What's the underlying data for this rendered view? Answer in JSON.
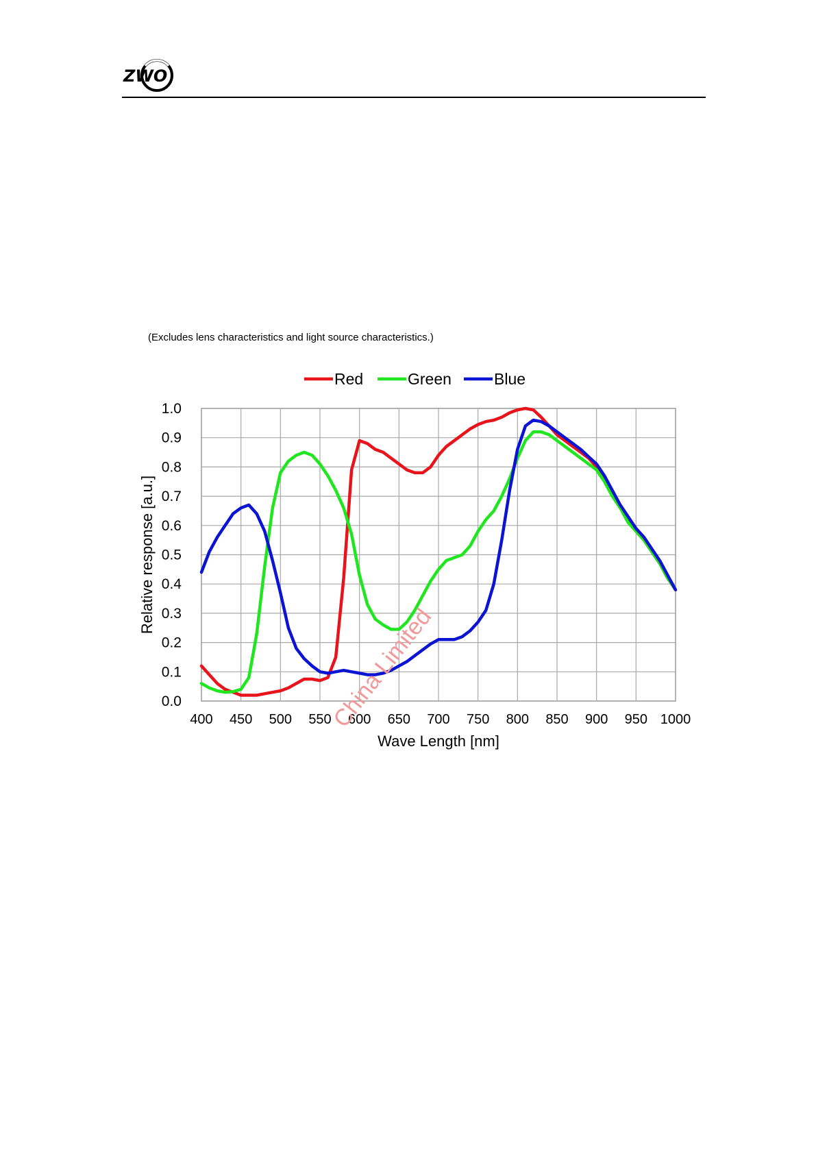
{
  "header": {
    "logo_text": "ZWO"
  },
  "note": "(Excludes lens characteristics and light source characteristics.)",
  "watermark": "China Limited",
  "colors": {
    "red": "#e8141c",
    "green": "#20e620",
    "blue": "#0a14d2",
    "grid": "#a8a8a8"
  },
  "chart_data": {
    "type": "line",
    "title": "",
    "xlabel": "Wave Length [nm]",
    "ylabel": "Relative response [a.u.]",
    "xlim": [
      400,
      1000
    ],
    "ylim": [
      0.0,
      1.0
    ],
    "xticks": [
      "400",
      "450",
      "500",
      "550",
      "600",
      "650",
      "700",
      "750",
      "800",
      "850",
      "900",
      "950",
      "1000"
    ],
    "yticks": [
      "0.0",
      "0.1",
      "0.2",
      "0.3",
      "0.4",
      "0.5",
      "0.6",
      "0.7",
      "0.8",
      "0.9",
      "1.0"
    ],
    "grid": true,
    "legend_position": "top-center",
    "x": [
      400,
      410,
      420,
      430,
      440,
      450,
      460,
      470,
      480,
      490,
      500,
      510,
      520,
      530,
      540,
      550,
      560,
      570,
      580,
      590,
      600,
      610,
      620,
      630,
      640,
      650,
      660,
      670,
      680,
      690,
      700,
      710,
      720,
      730,
      740,
      750,
      760,
      770,
      780,
      790,
      800,
      810,
      820,
      830,
      840,
      850,
      860,
      870,
      880,
      890,
      900,
      910,
      920,
      930,
      940,
      950,
      960,
      970,
      980,
      990,
      1000
    ],
    "series": [
      {
        "name": "Red",
        "color": "#e8141c",
        "values": [
          0.12,
          0.09,
          0.06,
          0.04,
          0.03,
          0.02,
          0.02,
          0.02,
          0.025,
          0.03,
          0.035,
          0.045,
          0.06,
          0.075,
          0.075,
          0.07,
          0.08,
          0.15,
          0.42,
          0.79,
          0.89,
          0.88,
          0.86,
          0.85,
          0.83,
          0.81,
          0.79,
          0.78,
          0.78,
          0.8,
          0.84,
          0.87,
          0.89,
          0.91,
          0.93,
          0.945,
          0.955,
          0.96,
          0.97,
          0.985,
          0.995,
          1.0,
          0.995,
          0.97,
          0.94,
          0.91,
          0.89,
          0.87,
          0.85,
          0.83,
          0.8,
          0.76,
          0.71,
          0.66,
          0.62,
          0.58,
          0.55,
          0.51,
          0.47,
          0.42,
          0.38
        ]
      },
      {
        "name": "Green",
        "color": "#20e620",
        "values": [
          0.06,
          0.045,
          0.035,
          0.03,
          0.032,
          0.04,
          0.08,
          0.23,
          0.46,
          0.66,
          0.78,
          0.82,
          0.84,
          0.85,
          0.84,
          0.81,
          0.77,
          0.72,
          0.66,
          0.57,
          0.43,
          0.33,
          0.28,
          0.26,
          0.245,
          0.245,
          0.27,
          0.31,
          0.36,
          0.41,
          0.45,
          0.48,
          0.49,
          0.5,
          0.53,
          0.58,
          0.62,
          0.65,
          0.7,
          0.76,
          0.83,
          0.89,
          0.92,
          0.92,
          0.91,
          0.89,
          0.87,
          0.85,
          0.83,
          0.81,
          0.79,
          0.75,
          0.7,
          0.66,
          0.61,
          0.58,
          0.55,
          0.51,
          0.47,
          0.42,
          0.38
        ]
      },
      {
        "name": "Blue",
        "color": "#0a14d2",
        "values": [
          0.44,
          0.51,
          0.56,
          0.6,
          0.64,
          0.66,
          0.67,
          0.64,
          0.58,
          0.48,
          0.37,
          0.25,
          0.18,
          0.145,
          0.12,
          0.1,
          0.095,
          0.1,
          0.105,
          0.1,
          0.095,
          0.09,
          0.09,
          0.095,
          0.105,
          0.12,
          0.135,
          0.155,
          0.175,
          0.195,
          0.21,
          0.21,
          0.21,
          0.22,
          0.24,
          0.27,
          0.31,
          0.4,
          0.55,
          0.72,
          0.86,
          0.94,
          0.96,
          0.955,
          0.94,
          0.92,
          0.9,
          0.88,
          0.86,
          0.835,
          0.81,
          0.77,
          0.72,
          0.67,
          0.63,
          0.59,
          0.56,
          0.52,
          0.48,
          0.43,
          0.38
        ]
      }
    ]
  }
}
